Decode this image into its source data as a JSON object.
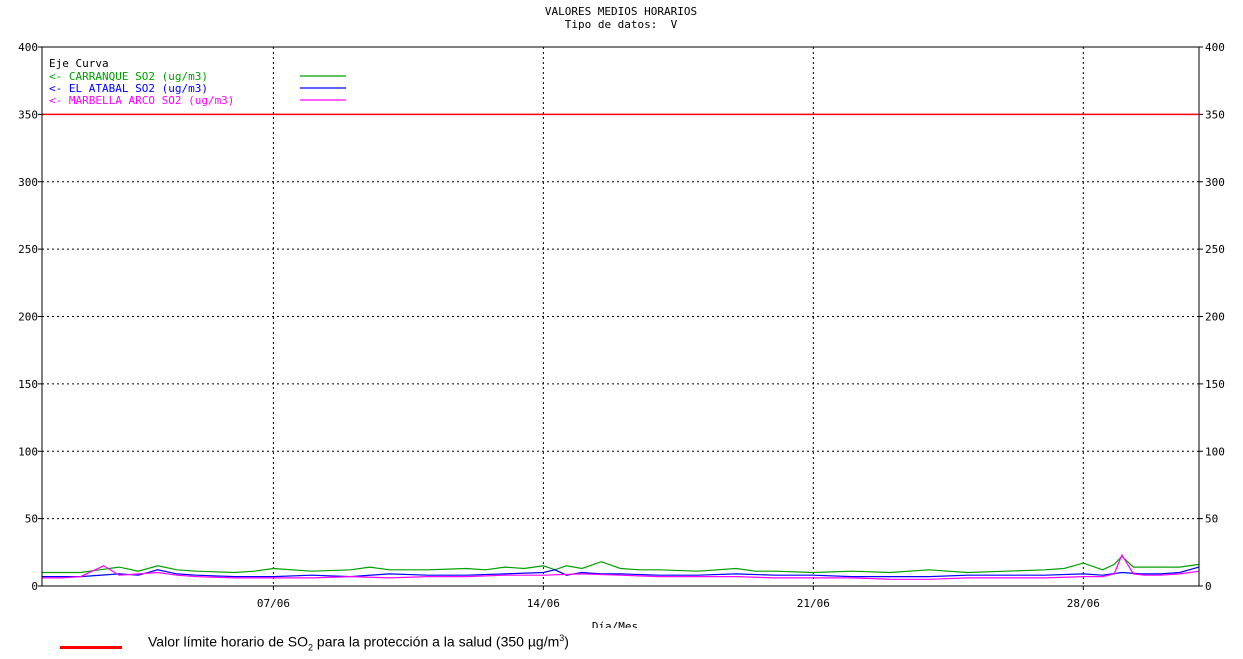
{
  "chart_data": {
    "type": "line",
    "title": "VALORES MEDIOS HORARIOS",
    "subtitle": "Tipo de datos:  V",
    "xlabel": "Día/Mes",
    "ylabel": "",
    "ylim": [
      0,
      400
    ],
    "yticks": [
      0,
      50,
      100,
      150,
      200,
      250,
      300,
      350,
      400
    ],
    "xlim": [
      1,
      31
    ],
    "xticks": [
      {
        "day": 7,
        "label": "07/06"
      },
      {
        "day": 14,
        "label": "14/06"
      },
      {
        "day": 21,
        "label": "21/06"
      },
      {
        "day": 28,
        "label": "28/06"
      }
    ],
    "grid": true,
    "legend_header": "Eje Curva",
    "legend_position": "top-left",
    "threshold": {
      "value": 350,
      "color": "#ff0000"
    },
    "series": [
      {
        "name": "CARRANQUE SO2  (ug/m3)",
        "legend_label": "<-  CARRANQUE SO2  (ug/m3)",
        "color": "#00a000",
        "x": [
          1,
          2,
          2.5,
          3,
          3.5,
          4,
          4.5,
          5,
          6,
          6.5,
          7,
          8,
          9,
          9.5,
          10,
          11,
          12,
          12.5,
          13,
          13.5,
          14,
          14.3,
          14.6,
          15,
          15.5,
          16,
          16.5,
          17,
          18,
          19,
          19.5,
          20,
          21,
          22,
          23,
          24,
          24.5,
          25,
          26,
          27,
          27.5,
          28,
          28.5,
          28.8,
          29,
          29.3,
          29.6,
          30,
          30.5,
          31
        ],
        "y": [
          10,
          10,
          12,
          14,
          11,
          15,
          12,
          11,
          10,
          11,
          13,
          11,
          12,
          14,
          12,
          12,
          13,
          12,
          14,
          13,
          15,
          12,
          15,
          13,
          18,
          13,
          12,
          12,
          11,
          13,
          11,
          11,
          10,
          11,
          10,
          12,
          11,
          10,
          11,
          12,
          13,
          17,
          12,
          16,
          22,
          14,
          14,
          14,
          14,
          16
        ]
      },
      {
        "name": "EL ATABAL SO2  (ug/m3)",
        "legend_label": "<-  EL ATABAL SO2  (ug/m3)",
        "color": "#0000ff",
        "x": [
          1,
          2,
          3,
          3.5,
          4,
          4.5,
          5,
          6,
          7,
          8,
          9,
          10,
          11,
          12,
          13,
          14,
          14.3,
          14.6,
          15,
          15.5,
          16,
          17,
          18,
          19,
          20,
          21,
          22,
          23,
          24,
          25,
          26,
          27,
          28,
          28.5,
          29,
          29.5,
          30,
          30.5,
          31
        ],
        "y": [
          7,
          7,
          9,
          8,
          12,
          9,
          8,
          7,
          7,
          8,
          7,
          9,
          8,
          8,
          9,
          10,
          12,
          8,
          10,
          9,
          9,
          8,
          8,
          9,
          8,
          8,
          7,
          7,
          7,
          8,
          8,
          8,
          9,
          8,
          10,
          9,
          9,
          10,
          14
        ]
      },
      {
        "name": "MARBELLA ARCO SO2  (ug/m3)",
        "legend_label": "<-  MARBELLA ARCO SO2  (ug/m3)",
        "color": "#ff00ff",
        "x": [
          1,
          1.5,
          2,
          2.6,
          3,
          3.5,
          4,
          4.5,
          5,
          6,
          7,
          8,
          9,
          10,
          11,
          12,
          13,
          14,
          15,
          16,
          17,
          18,
          19,
          20,
          21,
          22,
          23,
          24,
          25,
          26,
          27,
          28,
          28.5,
          28.8,
          29,
          29.3,
          29.6,
          30,
          30.5,
          31
        ],
        "y": [
          6,
          6,
          7,
          15,
          8,
          9,
          10,
          8,
          7,
          6,
          6,
          6,
          7,
          6,
          7,
          7,
          8,
          8,
          9,
          8,
          7,
          7,
          7,
          6,
          6,
          6,
          5,
          5,
          6,
          6,
          6,
          7,
          7,
          9,
          23,
          9,
          8,
          8,
          9,
          11
        ]
      }
    ]
  },
  "footer": {
    "text_before_sub": "Valor límite horario de SO",
    "sub": "2",
    "text_middle": " para la protección a la salud (350 µg/m",
    "sup": "3",
    "text_after_sup": ")"
  }
}
